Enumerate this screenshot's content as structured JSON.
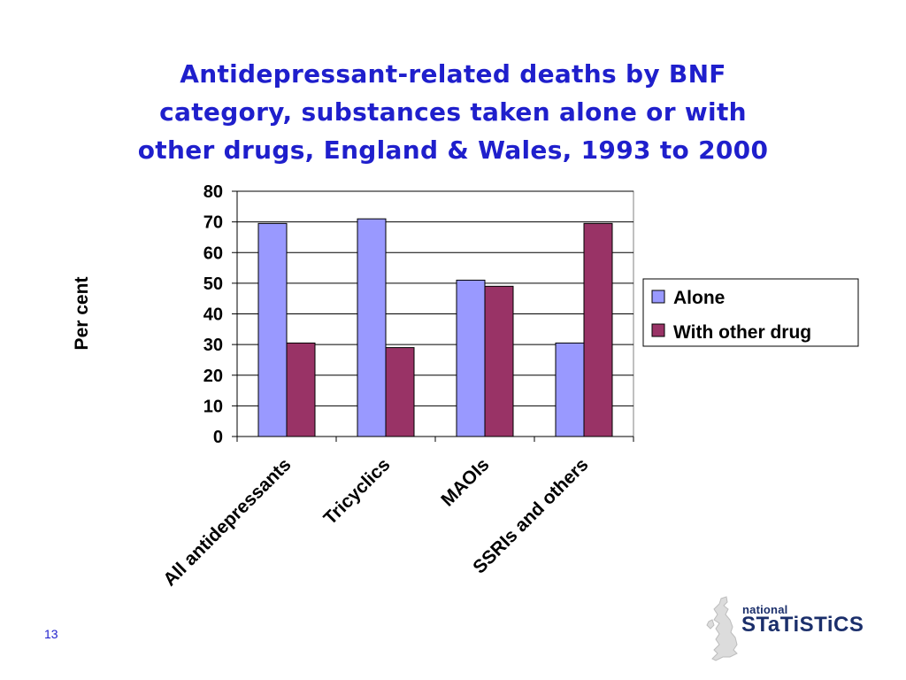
{
  "title_lines": [
    "Antidepressant-related deaths by BNF",
    "category, substances taken alone or with",
    "other drugs, England & Wales, 1993 to 2000"
  ],
  "page_number": "13",
  "logo": {
    "line1": "national",
    "line2": "STaTiSTiCS"
  },
  "colors": {
    "title": "#1f1fcc",
    "alone": "#9999ff",
    "with_other": "#993366",
    "logo": "#1b2f6b"
  },
  "chart_data": {
    "type": "bar",
    "categories": [
      "All antidepressants",
      "Tricyclics",
      "MAOIs",
      "SSRIs and others"
    ],
    "series": [
      {
        "name": "Alone",
        "values": [
          69.5,
          71,
          51,
          30.5
        ]
      },
      {
        "name": "With other drug",
        "values": [
          30.5,
          29,
          49,
          69.5
        ]
      }
    ],
    "ylabel": "Per cent",
    "xlabel": "",
    "ylim": [
      0,
      80
    ],
    "yticks": [
      "0",
      "10",
      "20",
      "30",
      "40",
      "50",
      "60",
      "70",
      "80"
    ],
    "grid": true,
    "legend": "right"
  }
}
